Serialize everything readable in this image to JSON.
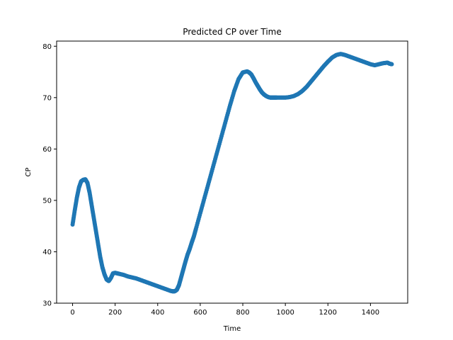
{
  "chart_data": {
    "type": "scatter",
    "title": "Predicted CP over Time",
    "xlabel": "Time",
    "ylabel": "CP",
    "xlim": [
      -75,
      1575
    ],
    "ylim": [
      30,
      81
    ],
    "xticks": [
      0,
      200,
      400,
      600,
      800,
      1000,
      1200,
      1400
    ],
    "yticks": [
      30,
      40,
      50,
      60,
      70,
      80
    ],
    "grid": false,
    "marker_color": "#1f77b4",
    "series": [
      {
        "x": [
          0,
          10,
          20,
          30,
          40,
          50,
          60,
          70,
          80,
          90,
          100,
          110,
          120,
          130,
          140,
          150,
          160,
          170,
          180,
          190,
          200,
          210,
          220,
          240,
          260,
          280,
          300,
          320,
          340,
          360,
          380,
          400,
          420,
          440,
          460,
          470,
          480,
          490,
          500,
          510,
          520,
          530,
          540,
          550,
          560,
          570,
          580,
          600,
          620,
          640,
          660,
          680,
          700,
          720,
          740,
          760,
          780,
          800,
          820,
          830,
          840,
          850,
          860,
          870,
          880,
          890,
          900,
          910,
          920,
          930,
          940,
          950,
          960,
          980,
          1000,
          1020,
          1040,
          1060,
          1080,
          1100,
          1120,
          1140,
          1160,
          1180,
          1200,
          1220,
          1240,
          1260,
          1280,
          1300,
          1320,
          1340,
          1360,
          1380,
          1400,
          1420,
          1440,
          1460,
          1480,
          1490,
          1500
        ],
        "y": [
          45.3,
          48.0,
          50.5,
          52.5,
          53.7,
          54.0,
          54.1,
          53.4,
          51.5,
          49.0,
          46.5,
          44.0,
          41.5,
          39.0,
          37.0,
          35.6,
          34.6,
          34.3,
          34.9,
          35.8,
          35.9,
          35.8,
          35.7,
          35.5,
          35.2,
          35.0,
          34.8,
          34.5,
          34.2,
          33.9,
          33.6,
          33.3,
          33.0,
          32.7,
          32.4,
          32.3,
          32.3,
          32.6,
          33.5,
          35.0,
          36.5,
          38.0,
          39.4,
          40.5,
          41.8,
          43.0,
          44.5,
          47.5,
          50.5,
          53.5,
          56.5,
          59.5,
          62.5,
          65.5,
          68.5,
          71.3,
          73.6,
          74.9,
          75.1,
          74.9,
          74.5,
          73.8,
          73.0,
          72.3,
          71.6,
          71.0,
          70.6,
          70.3,
          70.1,
          70.0,
          70.0,
          70.0,
          70.0,
          70.0,
          70.0,
          70.1,
          70.3,
          70.7,
          71.3,
          72.1,
          73.1,
          74.1,
          75.1,
          76.1,
          77.0,
          77.8,
          78.3,
          78.5,
          78.3,
          78.0,
          77.7,
          77.4,
          77.1,
          76.8,
          76.5,
          76.3,
          76.5,
          76.7,
          76.8,
          76.6,
          76.5
        ]
      }
    ]
  }
}
